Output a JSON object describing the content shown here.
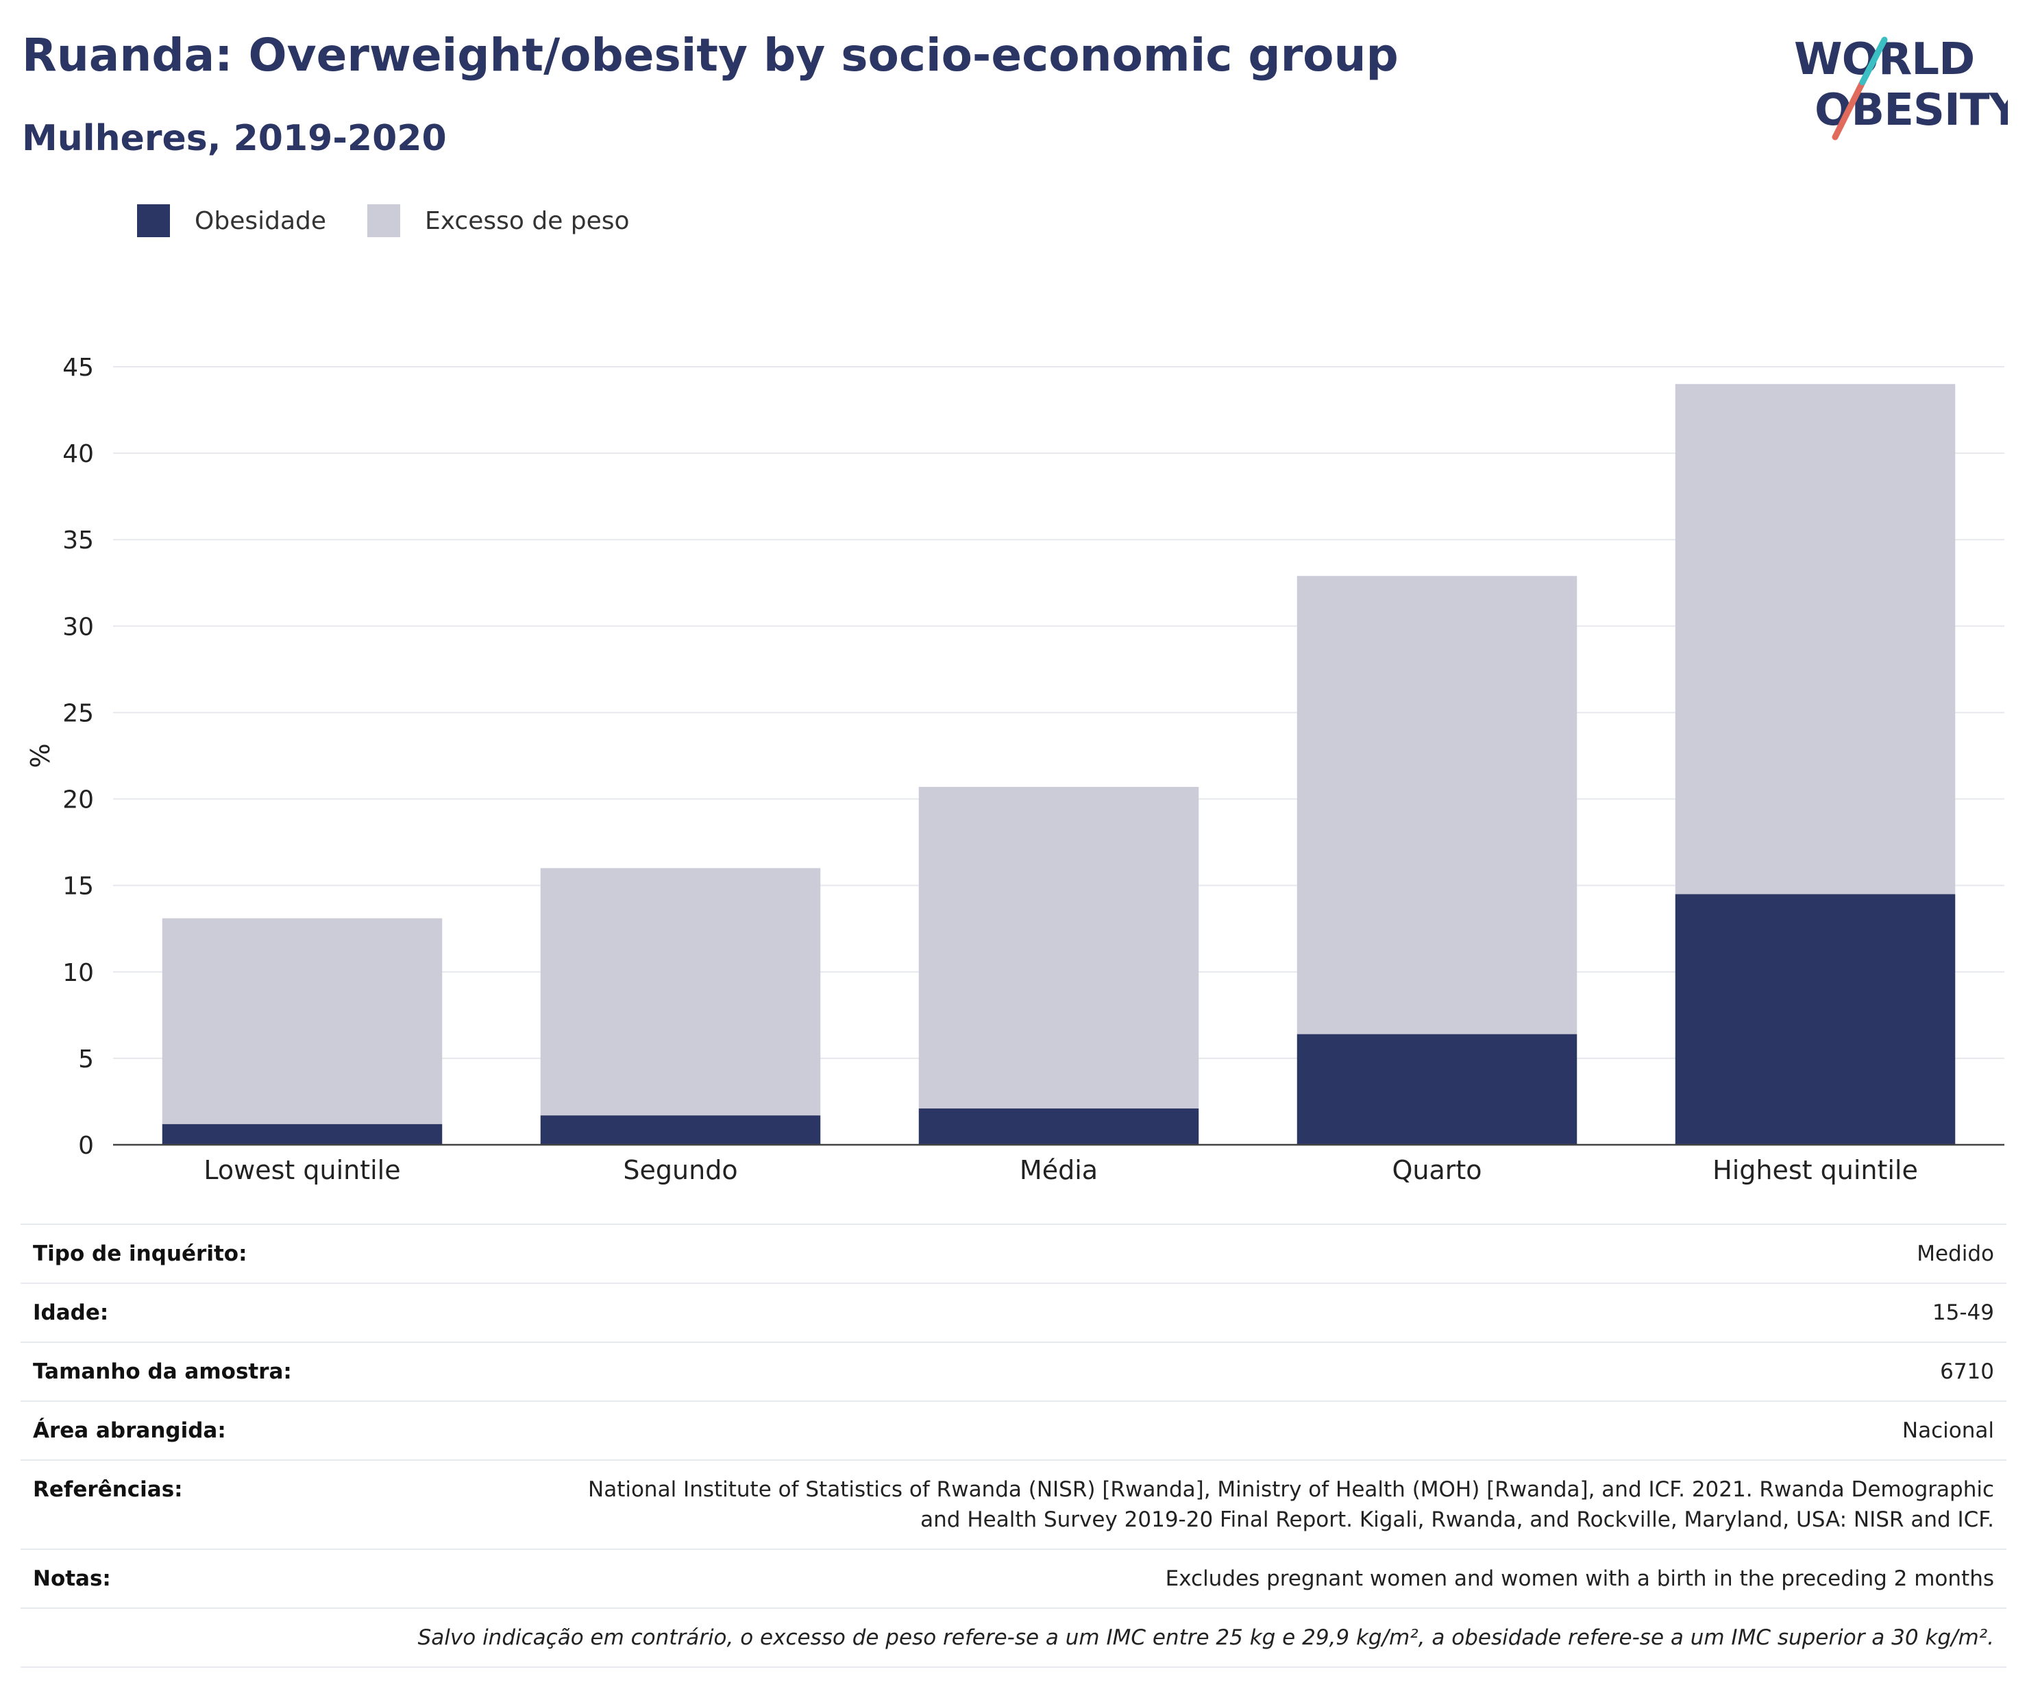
{
  "title": "Ruanda: Overweight/obesity by socio-economic group",
  "subtitle": "Mulheres, 2019-2020",
  "logo": {
    "line1": "WORLD",
    "line2": "OBESITY"
  },
  "colors": {
    "obesity": "#2b3664",
    "overweight": "#cbccd8",
    "title": "#2b3664"
  },
  "legend": [
    {
      "label": "Obesidade",
      "color": "#2b3664"
    },
    {
      "label": "Excesso de peso",
      "color": "#cbccd8"
    }
  ],
  "chart_data": {
    "type": "bar",
    "stacked": true,
    "categories": [
      "Lowest quintile",
      "Segundo",
      "Média",
      "Quarto",
      "Highest quintile"
    ],
    "series": [
      {
        "name": "Obesidade",
        "values": [
          1.2,
          1.7,
          2.1,
          6.4,
          14.5
        ]
      },
      {
        "name": "Excesso de peso",
        "values": [
          11.9,
          14.3,
          18.6,
          26.5,
          29.5
        ]
      }
    ],
    "totals": [
      13.1,
      16.0,
      20.7,
      32.9,
      44.0
    ],
    "ylabel": "%",
    "xlabel": "",
    "ylim": [
      0,
      45
    ],
    "yticks": [
      "0",
      "5",
      "10",
      "15",
      "20",
      "25",
      "30",
      "35",
      "40",
      "45"
    ],
    "grid": true,
    "legend_position": "top-left"
  },
  "meta": [
    {
      "label": "Tipo de inquérito:",
      "value": "Medido"
    },
    {
      "label": "Idade:",
      "value": "15-49"
    },
    {
      "label": "Tamanho da amostra:",
      "value": "6710"
    },
    {
      "label": "Área abrangida:",
      "value": "Nacional"
    },
    {
      "label": "Referências:",
      "value": "National Institute of Statistics of Rwanda (NISR) [Rwanda], Ministry of Health (MOH) [Rwanda], and ICF. 2021. Rwanda Demographic and Health Survey 2019-20 Final Report. Kigali, Rwanda, and Rockville, Maryland, USA: NISR and ICF."
    },
    {
      "label": "Notas:",
      "value": "Excludes pregnant women and women with a birth in the preceding 2 months"
    }
  ],
  "footnote": "Salvo indicação em contrário, o excesso de peso refere-se a um IMC entre 25 kg e 29,9 kg/m², a obesidade refere-se a um IMC superior a 30 kg/m²."
}
